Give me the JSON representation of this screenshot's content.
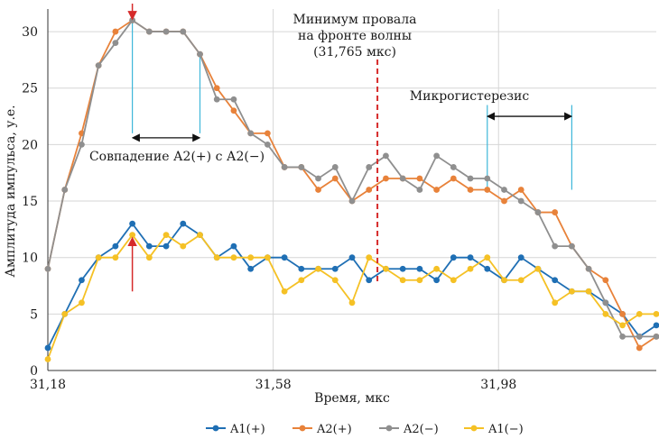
{
  "chart_data": {
    "type": "line",
    "title": "",
    "xlabel": "Время, мкс",
    "ylabel": "Амплитуда импульса, у.е.",
    "grid": true,
    "xlim": [
      31.18,
      32.26
    ],
    "ylim": [
      0,
      32
    ],
    "x_ticks": [
      31.18,
      31.58,
      31.98
    ],
    "x_tick_labels": [
      "31,18",
      "31,58",
      "31,98"
    ],
    "y_ticks": [
      0,
      5,
      10,
      15,
      20,
      25,
      30
    ],
    "y_tick_labels": [
      "0",
      "5",
      "10",
      "15",
      "20",
      "25",
      "30"
    ],
    "x": [
      31.18,
      31.21,
      31.24,
      31.27,
      31.3,
      31.33,
      31.36,
      31.39,
      31.42,
      31.45,
      31.48,
      31.51,
      31.54,
      31.57,
      31.6,
      31.63,
      31.66,
      31.69,
      31.72,
      31.75,
      31.78,
      31.81,
      31.84,
      31.87,
      31.9,
      31.93,
      31.96,
      31.99,
      32.02,
      32.05,
      32.08,
      32.11,
      32.14,
      32.17,
      32.2,
      32.23,
      32.26
    ],
    "series": [
      {
        "name": "A1(+)",
        "color": "#1f6fb4",
        "values": [
          2,
          5,
          8,
          10,
          11,
          13,
          11,
          11,
          13,
          12,
          10,
          11,
          9,
          10,
          10,
          9,
          9,
          9,
          10,
          8,
          9,
          9,
          9,
          8,
          10,
          10,
          9,
          8,
          10,
          9,
          8,
          7,
          7,
          6,
          5,
          3,
          4
        ]
      },
      {
        "name": "A2(+)",
        "color": "#e8823a",
        "values": [
          9,
          16,
          21,
          27,
          30,
          31,
          30,
          30,
          30,
          28,
          25,
          23,
          21,
          21,
          18,
          18,
          16,
          17,
          15,
          16,
          17,
          17,
          17,
          16,
          17,
          16,
          16,
          15,
          16,
          14,
          14,
          11,
          9,
          8,
          5,
          2,
          3
        ]
      },
      {
        "name": "A2(−)",
        "color": "#8f8f8f",
        "values": [
          9,
          16,
          20,
          27,
          29,
          31,
          30,
          30,
          30,
          28,
          24,
          24,
          21,
          20,
          18,
          18,
          17,
          18,
          15,
          18,
          19,
          17,
          16,
          19,
          18,
          17,
          17,
          16,
          15,
          14,
          11,
          11,
          9,
          6,
          3,
          3,
          3
        ]
      },
      {
        "name": "A1(−)",
        "color": "#f5c125",
        "values": [
          1,
          5,
          6,
          10,
          10,
          12,
          10,
          12,
          11,
          12,
          10,
          10,
          10,
          10,
          7,
          8,
          9,
          8,
          6,
          10,
          9,
          8,
          8,
          9,
          8,
          9,
          10,
          8,
          8,
          9,
          6,
          7,
          7,
          5,
          4,
          5,
          5
        ]
      }
    ],
    "annotations": {
      "minimum": {
        "lines": [
          "Минимум провала",
          "на фронте волны",
          "(31,765 мкс)"
        ],
        "x": 31.765
      },
      "micro": {
        "label": "Микрогистерезис",
        "x1": 31.96,
        "x2": 32.11,
        "y": 22.5
      },
      "coincide": {
        "label": "Совпадение А2(+) с А2(−)",
        "x1": 31.33,
        "x2": 31.45,
        "y": 20.6
      },
      "red_arrow_top": {
        "x": 31.33,
        "y_from": 32,
        "y_to": 31
      },
      "red_arrow_bottom": {
        "x": 31.33,
        "y_from": 7,
        "y_to": 12
      },
      "cyan_lines": [
        {
          "x": 31.33,
          "y_from": 21,
          "y_to": 31
        },
        {
          "x": 31.45,
          "y_from": 21,
          "y_to": 28
        },
        {
          "x": 31.96,
          "y_from": 16,
          "y_to": 23.5
        },
        {
          "x": 32.11,
          "y_from": 16,
          "y_to": 23.5
        }
      ]
    },
    "legend": {
      "placement": "bottom",
      "items": [
        "A1(+)",
        "A2(+)",
        "A2(−)",
        "A1(−)"
      ]
    }
  }
}
